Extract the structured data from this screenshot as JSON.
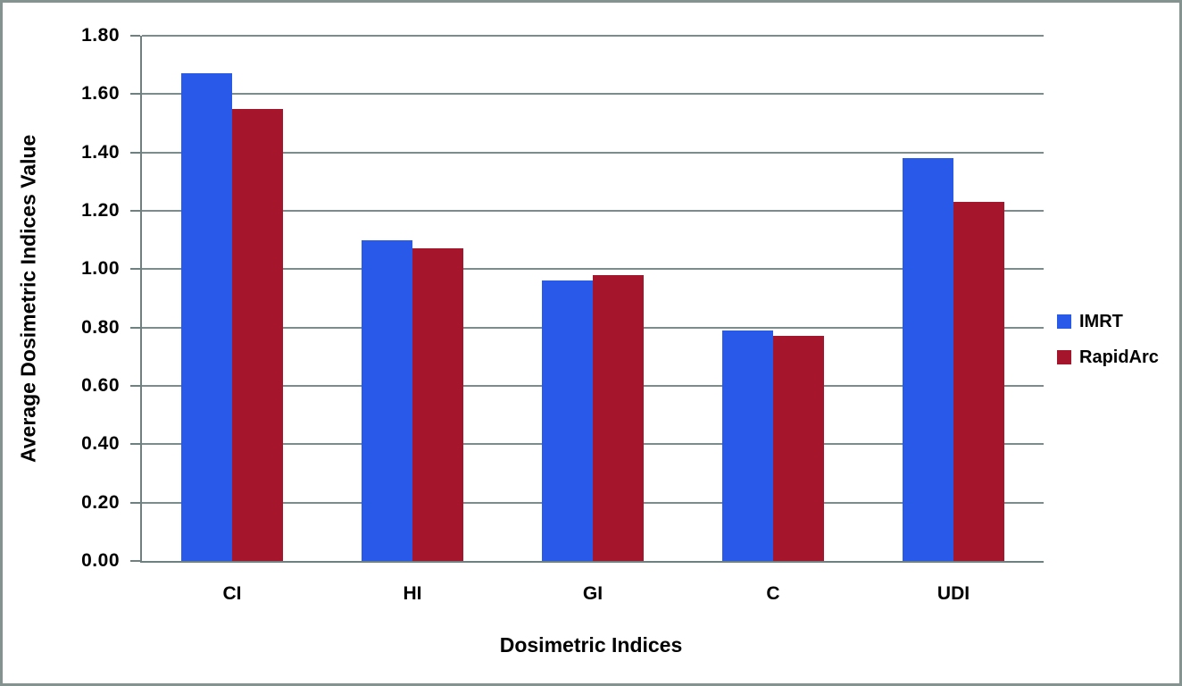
{
  "chart_data": {
    "type": "bar",
    "title": "",
    "xlabel": "Dosimetric Indices",
    "ylabel": "Average Dosimetric Indices Value",
    "categories": [
      "CI",
      "HI",
      "GI",
      "C",
      "UDI"
    ],
    "series": [
      {
        "name": "IMRT",
        "color": "#2859E8",
        "values": [
          1.67,
          1.1,
          0.96,
          0.79,
          1.38
        ]
      },
      {
        "name": "RapidArc",
        "color": "#A5152B",
        "values": [
          1.55,
          1.07,
          0.98,
          0.77,
          1.23
        ]
      }
    ],
    "ylim": [
      0,
      1.8
    ],
    "ytick_step": 0.2,
    "ytick_decimals": 2,
    "grid": true,
    "legend_position": "right",
    "colors": {
      "gridline": "#7C8C8C",
      "axis": "#6F8080",
      "frame_border": "#84938F",
      "text": "#000000",
      "background": "#FFFFFF"
    }
  }
}
